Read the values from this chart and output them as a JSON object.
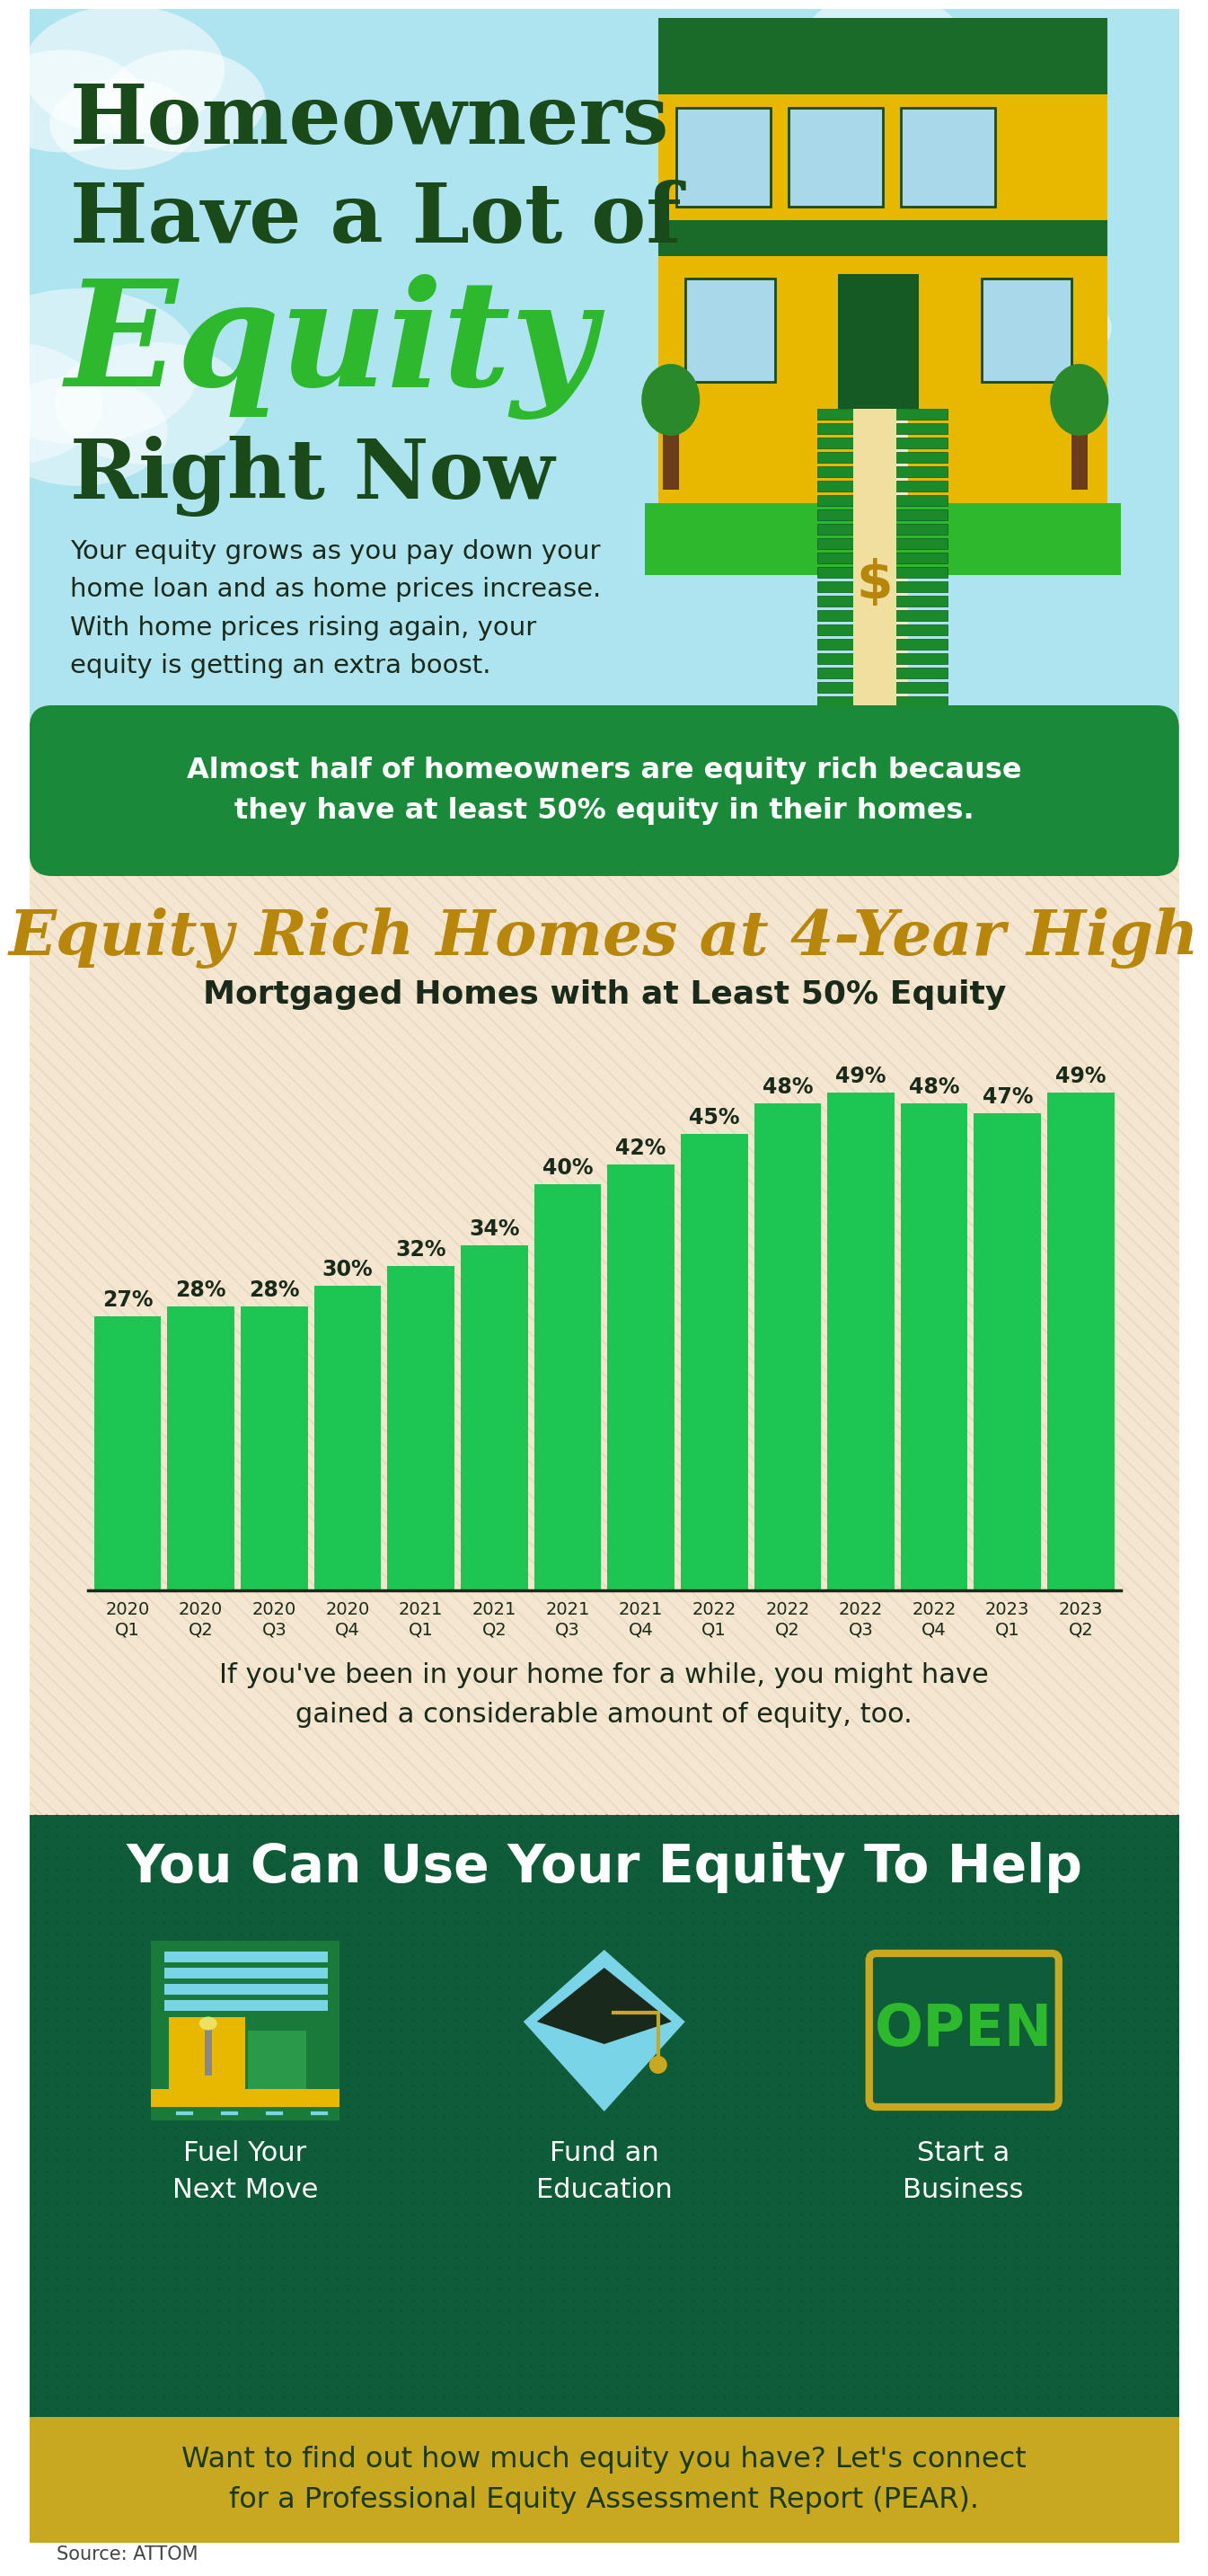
{
  "bg_top_color": "#aee4ef",
  "bg_mid_color": "#f5e6d0",
  "bg_bottom_color": "#0e5c38",
  "title_line1": "Homeowners",
  "title_line2": "Have a Lot of",
  "title_equity": "Equity",
  "title_line3": "Right Now",
  "title_color": "#1a4a1a",
  "equity_color": "#2eb82e",
  "body_text": "Your equity grows as you pay down your\nhome loan and as home prices increase.\nWith home prices rising again, your\nequity is getting an extra boost.",
  "callout_text": "Almost half of homeowners are equity rich because\nthey have at least 50% equity in their homes.",
  "callout_bg": "#1a8a3a",
  "callout_text_color": "#ffffff",
  "section_title": "Equity Rich Homes at 4-Year High",
  "section_title_color": "#b8860b",
  "chart_subtitle": "Mortgaged Homes with at Least 50% Equity",
  "chart_subtitle_color": "#1a2a1a",
  "bar_color": "#1dc653",
  "bar_labels": [
    "2020\nQ1",
    "2020\nQ2",
    "2020\nQ3",
    "2020\nQ4",
    "2021\nQ1",
    "2021\nQ2",
    "2021\nQ3",
    "2021\nQ4",
    "2022\nQ1",
    "2022\nQ2",
    "2022\nQ3",
    "2022\nQ4",
    "2023\nQ1",
    "2023\nQ2"
  ],
  "bar_values": [
    27,
    28,
    28,
    30,
    32,
    34,
    40,
    42,
    45,
    48,
    49,
    48,
    47,
    49
  ],
  "bar_value_labels": [
    "27%",
    "28%",
    "28%",
    "30%",
    "32%",
    "34%",
    "40%",
    "42%",
    "45%",
    "48%",
    "49%",
    "48%",
    "47%",
    "49%"
  ],
  "caption_text": "If you've been in your home for a while, you might have\ngained a considerable amount of equity, too.",
  "bottom_section_title": "You Can Use Your Equity To Help",
  "icon1_label": "Fuel Your\nNext Move",
  "icon2_label": "Fund an\nEducation",
  "icon3_label": "Start a\nBusiness",
  "footer_text": "Want to find out how much equity you have? Let's connect\nfor a Professional Equity Assessment Report (PEAR).",
  "footer_bg": "#c8a820",
  "footer_text_color": "#1a3a1a",
  "source_text": "Source: ATTOM",
  "white_bg": "#ffffff"
}
